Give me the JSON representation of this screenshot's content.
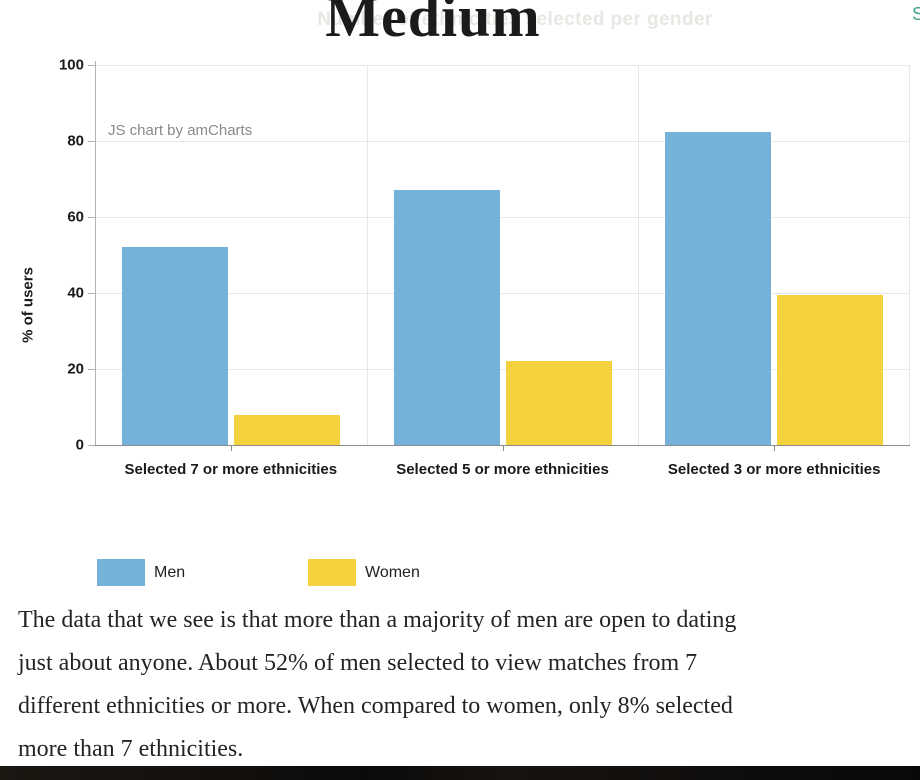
{
  "header": {
    "logo_text": "Medium",
    "signin_partial_text": "S"
  },
  "chart_data": {
    "type": "bar",
    "title": "Number of ethnicities selected per gender",
    "categories": [
      "Selected 7 or more ethnicities",
      "Selected 5 or more ethnicities",
      "Selected 3 or more ethnicities"
    ],
    "series": [
      {
        "name": "Men",
        "color": "#76b1d9",
        "values": [
          52,
          67,
          82.5
        ]
      },
      {
        "name": "Women",
        "color": "#f3d23e",
        "values": [
          8,
          22,
          39.5
        ]
      }
    ],
    "xlabel": "",
    "ylabel": "% of users",
    "ylim": [
      0,
      100
    ],
    "yticks": [
      0,
      20,
      40,
      60,
      80,
      100
    ],
    "grid": true,
    "legend_position": "bottom-left",
    "watermark": "JS chart by amCharts"
  },
  "article": {
    "paragraph_lines": [
      "The data that we see is that more than a majority of men are open to dating",
      "just about anyone. About 52% of men selected to view matches from 7",
      "different ethnicities or more. When compared to women, only 8% selected",
      "more than 7 ethnicities."
    ]
  },
  "colors": {
    "signin_link": "#3fa18c",
    "men_bar": "#76b1d9",
    "women_bar": "#f3d23e"
  }
}
